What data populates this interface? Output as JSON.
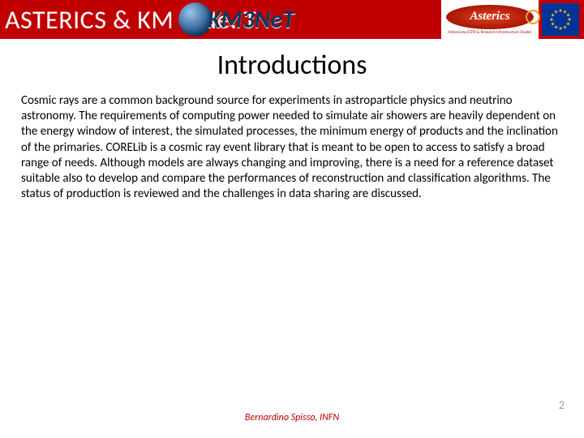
{
  "header": {
    "title": "ASTERICS & KM 3 Ne. T",
    "background_color": "#c00000",
    "text_color": "#ffffff"
  },
  "logos": {
    "km3net_text": "KM3NeT",
    "asterics_text": "Asterics",
    "asterics_subtitle": "Astronomy ESFRI & Research Infrastructure Cluster"
  },
  "title": "Introductions",
  "body": "Cosmic rays are a common background source for experiments in astroparticle physics and neutrino astronomy. The requirements of computing power needed to simulate air showers are heavily dependent on the energy window of interest, the simulated processes, the minimum energy of products and the inclination of the primaries. CORELib is a cosmic ray event library that is meant to be open to access to satisfy a broad range of needs. Although models are always changing and improving, there is a need for a reference dataset suitable also to develop and compare the performances of reconstruction and classification algorithms. The status of production is reviewed and the challenges in data sharing are discussed.",
  "footer": {
    "author": "Bernardino Spisso, INFN",
    "page_number": "2"
  },
  "colors": {
    "accent": "#c00000",
    "text": "#000000",
    "muted": "#9a9a9a",
    "eu_blue": "#003399",
    "eu_gold": "#ffcc00"
  },
  "typography": {
    "title_fontsize": 34,
    "body_fontsize": 15,
    "header_fontsize": 32,
    "footer_fontsize": 12
  }
}
